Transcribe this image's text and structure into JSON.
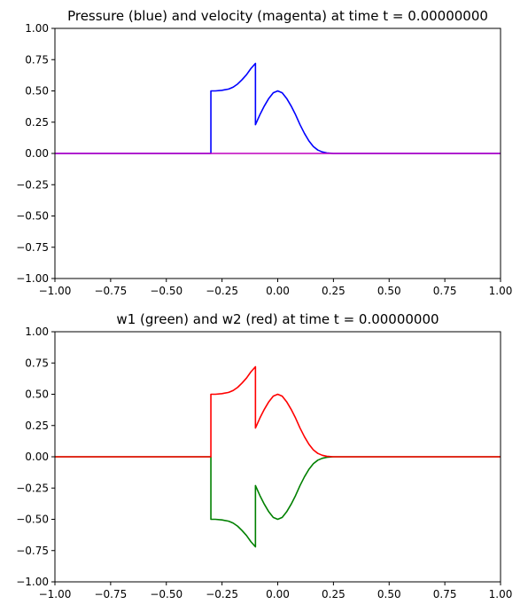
{
  "chart_data": [
    {
      "type": "line",
      "title": "Pressure (blue) and velocity (magenta) at time t =     0.00000000",
      "xlabel": "",
      "ylabel": "",
      "xlim": [
        -1.0,
        1.0
      ],
      "ylim": [
        -1.0,
        1.0
      ],
      "x_ticks": [
        "−1.00",
        "−0.75",
        "−0.50",
        "−0.25",
        "0.00",
        "0.25",
        "0.50",
        "0.75",
        "1.00"
      ],
      "y_ticks": [
        "1.00",
        "0.75",
        "0.50",
        "0.25",
        "0.00",
        "−0.25",
        "−0.50",
        "−0.75",
        "−1.00"
      ],
      "grid": false,
      "series": [
        {
          "color": "#0000ff",
          "x": [
            -1.0,
            -0.3,
            -0.3,
            -0.28,
            -0.25,
            -0.22,
            -0.2,
            -0.18,
            -0.16,
            -0.14,
            -0.12,
            -0.1,
            -0.1,
            -0.09,
            -0.08,
            -0.06,
            -0.04,
            -0.02,
            0.0,
            0.02,
            0.04,
            0.06,
            0.08,
            0.1,
            0.12,
            0.14,
            0.16,
            0.18,
            0.2,
            0.22,
            0.25,
            0.3,
            1.0
          ],
          "y": [
            0.0,
            0.0,
            0.5,
            0.5,
            0.505,
            0.515,
            0.53,
            0.555,
            0.59,
            0.63,
            0.68,
            0.72,
            0.23,
            0.27,
            0.31,
            0.38,
            0.44,
            0.485,
            0.5,
            0.485,
            0.44,
            0.38,
            0.31,
            0.23,
            0.16,
            0.1,
            0.055,
            0.027,
            0.012,
            0.004,
            0.0,
            0.0,
            0.0
          ]
        },
        {
          "color": "#bf00bf",
          "x": [
            -1.0,
            1.0
          ],
          "y": [
            0.0,
            0.0
          ]
        }
      ]
    },
    {
      "type": "line",
      "title": "w1 (green) and w2 (red) at time t =     0.00000000",
      "xlabel": "",
      "ylabel": "",
      "xlim": [
        -1.0,
        1.0
      ],
      "ylim": [
        -1.0,
        1.0
      ],
      "x_ticks": [
        "−1.00",
        "−0.75",
        "−0.50",
        "−0.25",
        "0.00",
        "0.25",
        "0.50",
        "0.75",
        "1.00"
      ],
      "y_ticks": [
        "1.00",
        "0.75",
        "0.50",
        "0.25",
        "0.00",
        "−0.25",
        "−0.50",
        "−0.75",
        "−1.00"
      ],
      "grid": false,
      "series": [
        {
          "color": "#008000",
          "x": [
            -1.0,
            -0.3,
            -0.3,
            -0.28,
            -0.25,
            -0.22,
            -0.2,
            -0.18,
            -0.16,
            -0.14,
            -0.12,
            -0.1,
            -0.1,
            -0.09,
            -0.08,
            -0.06,
            -0.04,
            -0.02,
            0.0,
            0.02,
            0.04,
            0.06,
            0.08,
            0.1,
            0.12,
            0.14,
            0.16,
            0.18,
            0.2,
            0.22,
            0.25,
            0.3,
            1.0
          ],
          "y": [
            0.0,
            0.0,
            -0.5,
            -0.5,
            -0.505,
            -0.515,
            -0.53,
            -0.555,
            -0.59,
            -0.63,
            -0.68,
            -0.72,
            -0.23,
            -0.27,
            -0.31,
            -0.38,
            -0.44,
            -0.485,
            -0.5,
            -0.485,
            -0.44,
            -0.38,
            -0.31,
            -0.23,
            -0.16,
            -0.1,
            -0.055,
            -0.027,
            -0.012,
            -0.004,
            0.0,
            0.0,
            0.0
          ]
        },
        {
          "color": "#ff0000",
          "x": [
            -1.0,
            -0.3,
            -0.3,
            -0.28,
            -0.25,
            -0.22,
            -0.2,
            -0.18,
            -0.16,
            -0.14,
            -0.12,
            -0.1,
            -0.1,
            -0.09,
            -0.08,
            -0.06,
            -0.04,
            -0.02,
            0.0,
            0.02,
            0.04,
            0.06,
            0.08,
            0.1,
            0.12,
            0.14,
            0.16,
            0.18,
            0.2,
            0.22,
            0.25,
            0.3,
            1.0
          ],
          "y": [
            0.0,
            0.0,
            0.5,
            0.5,
            0.505,
            0.515,
            0.53,
            0.555,
            0.59,
            0.63,
            0.68,
            0.72,
            0.23,
            0.27,
            0.31,
            0.38,
            0.44,
            0.485,
            0.5,
            0.485,
            0.44,
            0.38,
            0.31,
            0.23,
            0.16,
            0.1,
            0.055,
            0.027,
            0.012,
            0.004,
            0.0,
            0.0,
            0.0
          ]
        }
      ]
    }
  ]
}
